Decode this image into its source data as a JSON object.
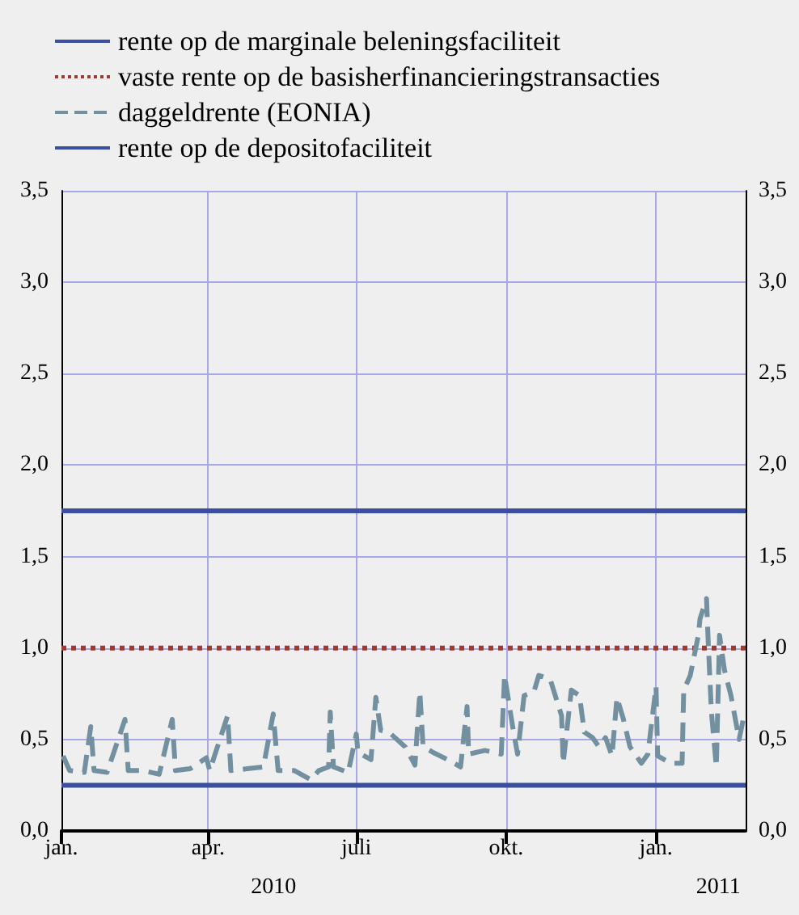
{
  "chart_data": {
    "type": "line",
    "legend": "top left",
    "grid": true,
    "marker": "none",
    "xlim": [
      "2010-01-01",
      "2011-02-25"
    ],
    "xticks": [
      {
        "value": "2010-01-01",
        "label": "jan."
      },
      {
        "value": "2010-04-01",
        "label": "apr."
      },
      {
        "value": "2010-07-01",
        "label": "juli"
      },
      {
        "value": "2010-10-01",
        "label": "okt."
      },
      {
        "value": "2011-01-01",
        "label": "jan."
      }
    ],
    "ylim": [
      0,
      3.5
    ],
    "yticks": [
      {
        "value": 0,
        "label": "0,0"
      },
      {
        "value": 0.5,
        "label": "0,5"
      },
      {
        "value": 1,
        "label": "1,0"
      },
      {
        "value": 1.5,
        "label": "1,5"
      },
      {
        "value": 2,
        "label": "2,0"
      },
      {
        "value": 2.5,
        "label": "2,5"
      },
      {
        "value": 3,
        "label": "3,0"
      },
      {
        "value": 3.5,
        "label": "3,5"
      }
    ],
    "y2lim": [
      0,
      3.5
    ],
    "y2ticks": [
      {
        "value": 0,
        "label": "0,0"
      },
      {
        "value": 0.5,
        "label": "0,5"
      },
      {
        "value": 1,
        "label": "1,0"
      },
      {
        "value": 1.5,
        "label": "1,5"
      },
      {
        "value": 2,
        "label": "2,0"
      },
      {
        "value": 2.5,
        "label": "2,5"
      },
      {
        "value": 3,
        "label": "3,0"
      },
      {
        "value": 3.5,
        "label": "3,5"
      }
    ],
    "annotations": [
      "2010",
      "2011"
    ],
    "series": [
      {
        "name": "rente op de marginale beleningsfaciliteit",
        "color": "#3a4fa0",
        "line_style": "solid",
        "x": [
          "2010-01-01",
          "2011-02-25"
        ],
        "values": [
          1.75,
          1.75
        ]
      },
      {
        "name": "vaste rente op de basisherfinancieringstransacties",
        "color": "#a0392f",
        "line_style": "dotted",
        "x": [
          "2010-01-01",
          "2011-02-25"
        ],
        "values": [
          1.0,
          1.0
        ]
      },
      {
        "name": "daggeldrente (EONIA)",
        "color": "#7290a0",
        "line_style": "dashed",
        "x": [
          "2010-01-02",
          "2010-01-06",
          "2010-01-15",
          "2010-01-19",
          "2010-01-21",
          "2010-01-29",
          "2010-02-09",
          "2010-02-11",
          "2010-02-20",
          "2010-03-02",
          "2010-03-10",
          "2010-03-12",
          "2010-03-21",
          "2010-03-31",
          "2010-04-02",
          "2010-04-13",
          "2010-04-15",
          "2010-04-25",
          "2010-05-05",
          "2010-05-11",
          "2010-05-14",
          "2010-05-24",
          "2010-06-03",
          "2010-06-08",
          "2010-06-14",
          "2010-06-15",
          "2010-06-17",
          "2010-06-26",
          "2010-07-01",
          "2010-07-02",
          "2010-07-10",
          "2010-07-13",
          "2010-07-16",
          "2010-07-21",
          "2010-07-31",
          "2010-08-06",
          "2010-08-09",
          "2010-08-11",
          "2010-08-17",
          "2010-08-26",
          "2010-09-03",
          "2010-09-07",
          "2010-09-08",
          "2010-09-18",
          "2010-09-28",
          "2010-09-30",
          "2010-10-05",
          "2010-10-08",
          "2010-10-12",
          "2010-10-18",
          "2010-10-21",
          "2010-10-28",
          "2010-11-04",
          "2010-11-05",
          "2010-11-10",
          "2010-11-15",
          "2010-11-18",
          "2010-11-23",
          "2010-11-27",
          "2010-12-01",
          "2010-12-05",
          "2010-12-08",
          "2010-12-12",
          "2010-12-16",
          "2010-12-23",
          "2010-12-27",
          "2011-01-01",
          "2011-01-02",
          "2011-01-10",
          "2011-01-17",
          "2011-01-18",
          "2011-01-22",
          "2011-01-27",
          "2011-01-28",
          "2011-02-01",
          "2011-02-02",
          "2011-02-04",
          "2011-02-07",
          "2011-02-09",
          "2011-02-12",
          "2011-02-16",
          "2011-02-21",
          "2011-02-24"
        ],
        "values": [
          0.41,
          0.33,
          0.32,
          0.57,
          0.33,
          0.32,
          0.61,
          0.33,
          0.33,
          0.31,
          0.61,
          0.33,
          0.34,
          0.4,
          0.33,
          0.63,
          0.33,
          0.34,
          0.35,
          0.64,
          0.33,
          0.33,
          0.28,
          0.33,
          0.35,
          0.65,
          0.35,
          0.32,
          0.53,
          0.43,
          0.39,
          0.73,
          0.55,
          0.54,
          0.46,
          0.36,
          0.76,
          0.46,
          0.43,
          0.39,
          0.35,
          0.68,
          0.42,
          0.44,
          0.42,
          0.85,
          0.57,
          0.42,
          0.74,
          0.76,
          0.85,
          0.83,
          0.63,
          0.37,
          0.77,
          0.74,
          0.54,
          0.51,
          0.46,
          0.51,
          0.41,
          0.73,
          0.61,
          0.46,
          0.37,
          0.42,
          0.79,
          0.41,
          0.37,
          0.37,
          0.77,
          0.85,
          1.07,
          1.16,
          1.27,
          1.04,
          0.65,
          0.35,
          1.07,
          0.88,
          0.74,
          0.5,
          0.63
        ]
      },
      {
        "name": "rente op de depositofaciliteit",
        "color": "#3a4fa0",
        "line_style": "solid",
        "x": [
          "2010-01-01",
          "2011-02-25"
        ],
        "values": [
          0.25,
          0.25
        ]
      }
    ]
  }
}
